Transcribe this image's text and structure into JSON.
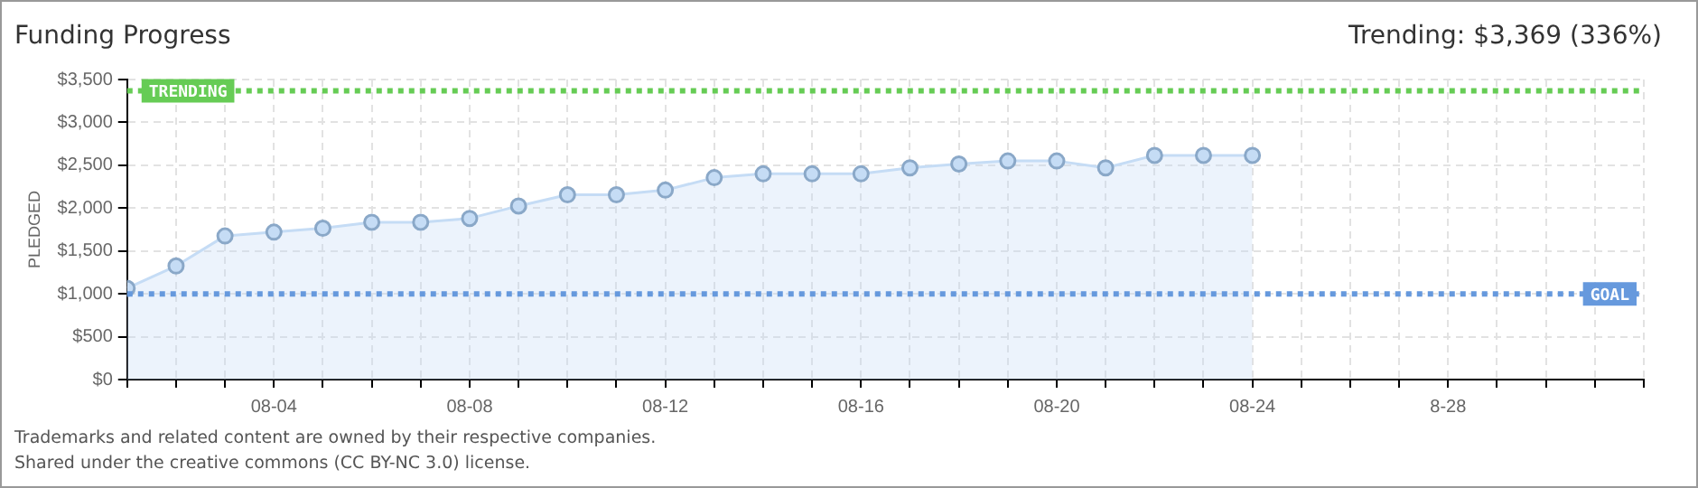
{
  "chart_data": {
    "type": "area",
    "title": "Funding Progress",
    "subtitle": "Trending:  $3,369 (336%)",
    "ylabel": "PLEDGED",
    "x": [
      "--08-01",
      "--08-02",
      "--08-03",
      "--08-04",
      "--08-05",
      "--08-06",
      "--08-07",
      "--08-08",
      "--08-09",
      "--08-10",
      "--08-11",
      "--08-12",
      "--08-13",
      "--08-14",
      "--08-15",
      "--08-16",
      "--08-17",
      "--08-18",
      "--08-19",
      "--08-20",
      "--08-21",
      "--08-22",
      "--08-23",
      "--08-24"
    ],
    "series": [
      {
        "color": "#c5dcf5",
        "values": [
          1065,
          1325,
          1675,
          1720,
          1765,
          1835,
          1835,
          1880,
          2025,
          2155,
          2155,
          2210,
          2355,
          2400,
          2400,
          2400,
          2470,
          2515,
          2550,
          2550,
          2470,
          2615,
          2615,
          2615
        ]
      }
    ],
    "xlim": [
      "--08-01",
      "--09-01"
    ],
    "xticks": [
      {
        "value": "--08-01",
        "label": null
      },
      {
        "value": "--08-02",
        "label": null
      },
      {
        "value": "--08-03",
        "label": null
      },
      {
        "value": "--08-04",
        "label": "08-04"
      },
      {
        "value": "--08-05",
        "label": null
      },
      {
        "value": "--08-06",
        "label": null
      },
      {
        "value": "--08-07",
        "label": null
      },
      {
        "value": "--08-08",
        "label": "08-08"
      },
      {
        "value": "--08-09",
        "label": null
      },
      {
        "value": "--08-10",
        "label": null
      },
      {
        "value": "--08-11",
        "label": null
      },
      {
        "value": "--08-12",
        "label": "08-12"
      },
      {
        "value": "--08-13",
        "label": null
      },
      {
        "value": "--08-14",
        "label": null
      },
      {
        "value": "--08-15",
        "label": null
      },
      {
        "value": "--08-16",
        "label": "08-16"
      },
      {
        "value": "--08-17",
        "label": null
      },
      {
        "value": "--08-18",
        "label": null
      },
      {
        "value": "--08-19",
        "label": null
      },
      {
        "value": "--08-20",
        "label": "08-20"
      },
      {
        "value": "--08-21",
        "label": null
      },
      {
        "value": "--08-22",
        "label": null
      },
      {
        "value": "--08-23",
        "label": null
      },
      {
        "value": "--08-24",
        "label": "08-24"
      },
      {
        "value": "--08-25",
        "label": null
      },
      {
        "value": "--08-26",
        "label": null
      },
      {
        "value": "--08-27",
        "label": null
      },
      {
        "value": "--08-28",
        "label": "8-28"
      },
      {
        "value": "--08-29",
        "label": null
      },
      {
        "value": "--08-30",
        "label": null
      },
      {
        "value": "--08-31",
        "label": null
      },
      {
        "value": "--09-01",
        "label": null
      }
    ],
    "ylim": [
      0,
      3500
    ],
    "yticks": [
      {
        "value": 0,
        "label": "$0"
      },
      {
        "value": 500,
        "label": "$500"
      },
      {
        "value": 1000,
        "label": "$1,000"
      },
      {
        "value": 1500,
        "label": "$1,500"
      },
      {
        "value": 2000,
        "label": "$2,000"
      },
      {
        "value": 2500,
        "label": "$2,500"
      },
      {
        "value": 3000,
        "label": "$3,000"
      },
      {
        "value": 3500,
        "label": "$3,500"
      }
    ],
    "ref_lines": [
      {
        "axis": "y",
        "value": 3369,
        "label": "TRENDING",
        "color": "#66cc55",
        "line_style": "dotted"
      },
      {
        "axis": "y",
        "value": 1000,
        "label": "GOAL",
        "color": "#6699dd",
        "line_style": "dotted"
      }
    ],
    "grid": true,
    "legend": false,
    "marker": "circle",
    "line_style": "solid",
    "annotations": [
      "Trademarks and related content are owned by their respective companies.",
      "Shared under the creative commons (CC BY-NC 3.0) license."
    ]
  }
}
